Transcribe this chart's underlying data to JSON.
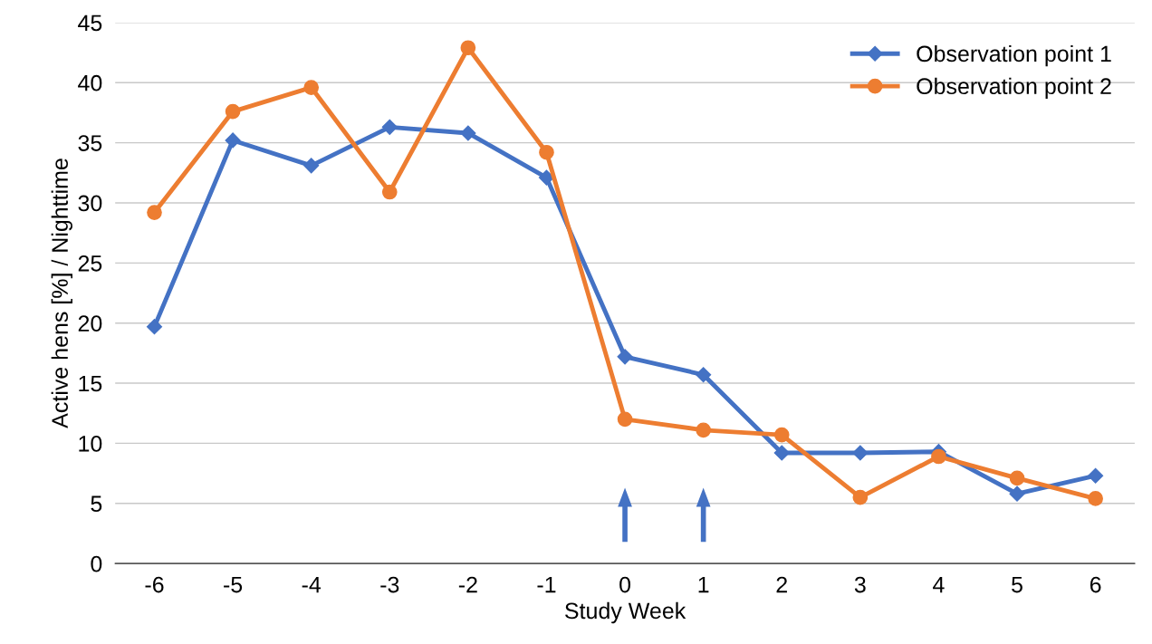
{
  "chart_data": {
    "type": "line",
    "xlabel": "Study Week",
    "ylabel": "Active hens [%] / Nighttime",
    "categories": [
      "-6",
      "-5",
      "-4",
      "-3",
      "-2",
      "-1",
      "0",
      "1",
      "2",
      "3",
      "4",
      "5",
      "6"
    ],
    "series": [
      {
        "name": "Observation point 1",
        "color": "#4472c4",
        "marker": "diamond",
        "values": [
          19.7,
          35.2,
          33.1,
          36.3,
          35.8,
          32.1,
          17.2,
          15.7,
          9.2,
          9.2,
          9.3,
          5.8,
          7.3
        ]
      },
      {
        "name": "Observation point 2",
        "color": "#ed7d31",
        "marker": "circle",
        "values": [
          29.2,
          37.6,
          39.6,
          30.9,
          42.9,
          34.2,
          12.0,
          11.1,
          10.7,
          5.5,
          8.9,
          7.1,
          5.4
        ]
      }
    ],
    "ylim": [
      0,
      45
    ],
    "yticks": [
      0,
      5,
      10,
      15,
      20,
      25,
      30,
      35,
      40,
      45
    ],
    "grid": "y",
    "legend": "top right",
    "line_style": "solid"
  }
}
